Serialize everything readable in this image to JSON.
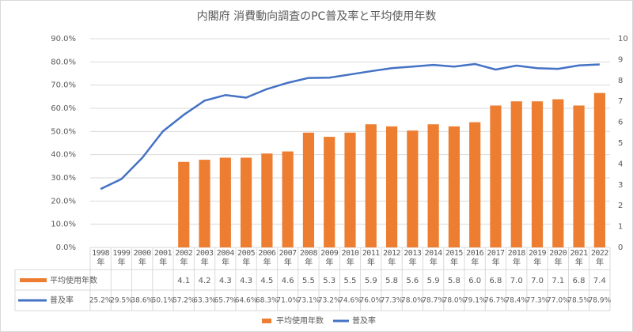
{
  "chart_data": {
    "type": "bar-line",
    "title": "内閣府 消費動向調査のPC普及率と平均使用年数",
    "categories": [
      "1998年",
      "1999年",
      "2000年",
      "2001年",
      "2002年",
      "2003年",
      "2004年",
      "2005年",
      "2006年",
      "2007年",
      "2008年",
      "2009年",
      "2010年",
      "2011年",
      "2012年",
      "2013年",
      "2014年",
      "2015年",
      "2016年",
      "2017年",
      "2018年",
      "2019年",
      "2020年",
      "2021年",
      "2022年"
    ],
    "series": [
      {
        "name": "平均使用年数",
        "type": "bar",
        "axis": "y2",
        "color": "#ed7d31",
        "values": [
          null,
          null,
          null,
          null,
          4.1,
          4.2,
          4.3,
          4.3,
          4.5,
          4.6,
          5.5,
          5.3,
          5.5,
          5.9,
          5.8,
          5.6,
          5.9,
          5.8,
          6.0,
          6.8,
          7.0,
          7.0,
          7.1,
          6.8,
          7.4
        ],
        "value_labels": [
          null,
          null,
          null,
          null,
          "4.1",
          "4.2",
          "4.3",
          "4.3",
          "4.5",
          "4.6",
          "5.5",
          "5.3",
          "5.5",
          "5.9",
          "5.8",
          "5.6",
          "5.9",
          "5.8",
          "6.0",
          "6.8",
          "7.0",
          "7.0",
          "7.1",
          "6.8",
          "7.4"
        ]
      },
      {
        "name": "普及率",
        "type": "line",
        "color": "#4472c4",
        "values": [
          25.2,
          29.5,
          38.6,
          50.1,
          57.2,
          63.3,
          65.7,
          64.6,
          68.3,
          71.0,
          73.1,
          73.2,
          74.6,
          76.0,
          77.3,
          78.0,
          78.7,
          78.0,
          79.1,
          76.7,
          78.4,
          77.3,
          77.0,
          78.5,
          78.9
        ],
        "value_labels": [
          "25.2%",
          "29.5%",
          "38.6%",
          "50.1%",
          "57.2%",
          "63.3%",
          "65.7%",
          "64.6%",
          "68.3%",
          "71.0%",
          "73.1%",
          "73.2%",
          "74.6%",
          "76.0%",
          "77.3%",
          "78.0%",
          "78.7%",
          "78.0%",
          "79.1%",
          "76.7%",
          "78.4%",
          "77.3%",
          "77.0%",
          "78.5%",
          "78.9%"
        ]
      }
    ],
    "ylim": [
      0,
      90
    ],
    "yticks": [
      {
        "value": 0,
        "label": "0.0%"
      },
      {
        "value": 10,
        "label": "10.0%"
      },
      {
        "value": 20,
        "label": "20.0%"
      },
      {
        "value": 30,
        "label": "30.0%"
      },
      {
        "value": 40,
        "label": "40.0%"
      },
      {
        "value": 50,
        "label": "50.0%"
      },
      {
        "value": 60,
        "label": "60.0%"
      },
      {
        "value": 70,
        "label": "70.0%"
      },
      {
        "value": 80,
        "label": "80.0%"
      },
      {
        "value": 90,
        "label": "90.0%"
      }
    ],
    "y2lim": [
      0,
      10
    ],
    "y2ticks": [
      0,
      1,
      2,
      3,
      4,
      5,
      6,
      7,
      8,
      9,
      10
    ],
    "grid": true,
    "legend": "bottom"
  }
}
